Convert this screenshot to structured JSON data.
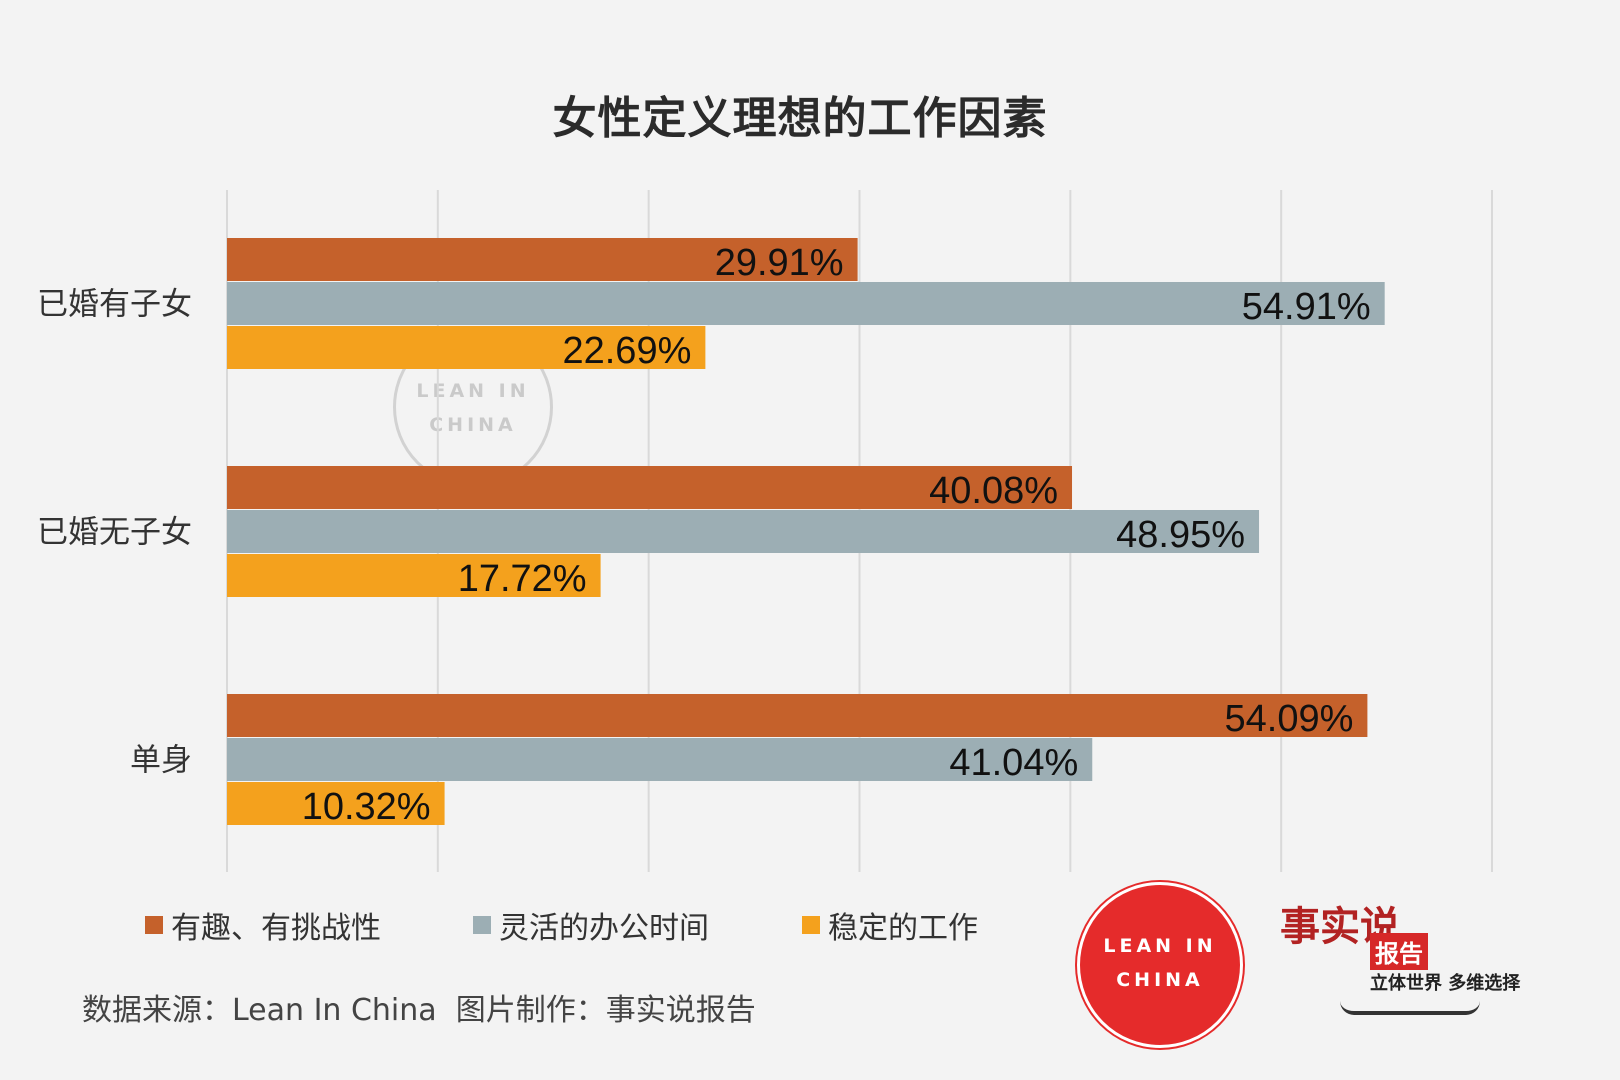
{
  "chart_data": {
    "type": "bar",
    "orientation": "horizontal",
    "title": "女性定义理想的工作因素",
    "categories": [
      "已婚有子女",
      "已婚无子女",
      "单身"
    ],
    "series": [
      {
        "name": "有趣、有挑战性",
        "color": "#c5612b",
        "values": [
          29.91,
          40.08,
          54.09
        ]
      },
      {
        "name": "灵活的办公时间",
        "color": "#9caeb4",
        "values": [
          54.91,
          48.95,
          41.04
        ]
      },
      {
        "name": "稳定的工作",
        "color": "#f4a11d",
        "values": [
          22.69,
          17.72,
          10.32
        ]
      }
    ],
    "data_labels": [
      [
        "29.91%",
        "54.91%",
        "22.69%"
      ],
      [
        "40.08%",
        "48.95%",
        "17.72%"
      ],
      [
        "54.09%",
        "41.04%",
        "10.32%"
      ]
    ],
    "xlim": [
      0,
      60
    ],
    "grid": true,
    "legend_position": "bottom"
  },
  "footer": {
    "source": "数据来源：Lean In China  图片制作：事实说报告"
  },
  "logos": {
    "lean_line1": "LEAN IN",
    "lean_line2": "CHINA",
    "shishi_calligraphy": "事实说",
    "shishi_badge": "报告",
    "shishi_slogan": "立体世界 多维选择"
  }
}
